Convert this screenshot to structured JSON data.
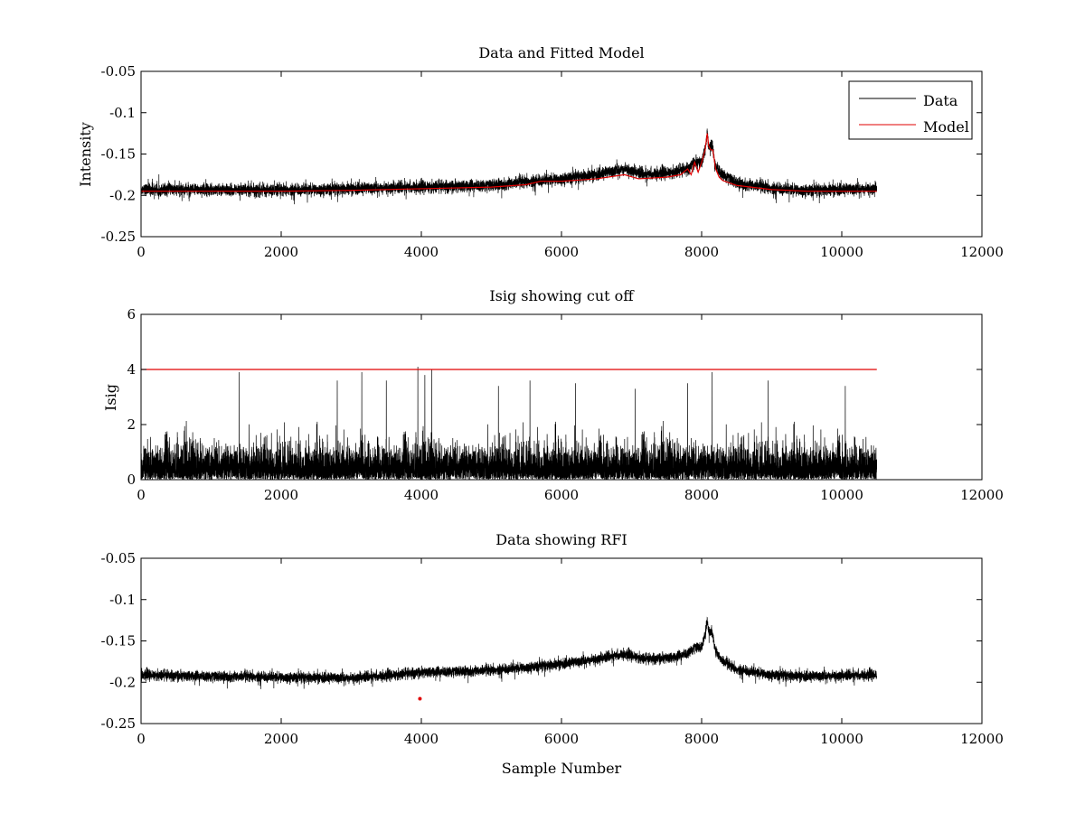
{
  "chart_data": [
    {
      "id": "p1",
      "type": "line",
      "title": "Data and Fitted Model",
      "xlabel": "",
      "ylabel": "Intensity",
      "xlim": [
        0,
        12000
      ],
      "ylim": [
        -0.25,
        -0.05
      ],
      "xticks": [
        0,
        2000,
        4000,
        6000,
        8000,
        10000,
        12000
      ],
      "yticks": [
        -0.25,
        -0.2,
        -0.15,
        -0.1,
        -0.05
      ],
      "xtick_labels": [
        "0",
        "2000",
        "4000",
        "6000",
        "8000",
        "10000",
        "12000"
      ],
      "ytick_labels": [
        "-0.25",
        "-0.2",
        "-0.15",
        "-0.1",
        "-0.05"
      ],
      "legend": {
        "position": "top-right",
        "entries": [
          {
            "label": "Data",
            "color": "#000000"
          },
          {
            "label": "Model",
            "color": "#e00000"
          }
        ]
      },
      "series": [
        {
          "name": "Data",
          "color": "#000000",
          "kind": "noisy",
          "n_points": 10500,
          "baseline_x": [
            0,
            1000,
            2000,
            3000,
            4000,
            5000,
            6000,
            6500,
            6900,
            7200,
            7600,
            7800,
            7900,
            8000,
            8050,
            8080,
            8100,
            8150,
            8200,
            8300,
            8500,
            9000,
            9500,
            10000,
            10500
          ],
          "baseline_y": [
            -0.193,
            -0.193,
            -0.194,
            -0.192,
            -0.19,
            -0.188,
            -0.18,
            -0.175,
            -0.168,
            -0.175,
            -0.172,
            -0.168,
            -0.16,
            -0.16,
            -0.145,
            -0.125,
            -0.14,
            -0.14,
            -0.165,
            -0.175,
            -0.185,
            -0.192,
            -0.194,
            -0.193,
            -0.192
          ],
          "noise_amplitude": 0.007
        },
        {
          "name": "Model",
          "color": "#e00000",
          "kind": "smooth",
          "x": [
            0,
            1000,
            2000,
            3000,
            4000,
            5000,
            5500,
            5700,
            6000,
            6500,
            6900,
            7100,
            7500,
            7700,
            7800,
            7850,
            7900,
            7950,
            8000,
            8050,
            8080,
            8100,
            8130,
            8160,
            8200,
            8250,
            8300,
            8500,
            9000,
            9500,
            10000,
            10500
          ],
          "y": [
            -0.195,
            -0.195,
            -0.195,
            -0.194,
            -0.192,
            -0.19,
            -0.187,
            -0.183,
            -0.183,
            -0.18,
            -0.175,
            -0.18,
            -0.178,
            -0.175,
            -0.168,
            -0.175,
            -0.16,
            -0.172,
            -0.16,
            -0.145,
            -0.125,
            -0.14,
            -0.145,
            -0.145,
            -0.168,
            -0.178,
            -0.182,
            -0.188,
            -0.193,
            -0.195,
            -0.195,
            -0.195
          ]
        }
      ]
    },
    {
      "id": "p2",
      "type": "line",
      "title": "Isig showing cut off",
      "xlabel": "",
      "ylabel": "Isig",
      "xlim": [
        0,
        12000
      ],
      "ylim": [
        0,
        6
      ],
      "xticks": [
        0,
        2000,
        4000,
        6000,
        8000,
        10000,
        12000
      ],
      "yticks": [
        0,
        2,
        4,
        6
      ],
      "xtick_labels": [
        "0",
        "2000",
        "4000",
        "6000",
        "8000",
        "10000",
        "12000"
      ],
      "ytick_labels": [
        "0",
        "2",
        "4",
        "6"
      ],
      "series": [
        {
          "name": "Isig",
          "color": "#000000",
          "kind": "abs-noise",
          "n_points": 10500,
          "typical_max": 2.2,
          "spike_x": [
            1400,
            2800,
            3150,
            3500,
            3950,
            4050,
            4150,
            5100,
            5550,
            6200,
            7050,
            7800,
            8150,
            8950,
            10050
          ],
          "spike_y": [
            3.9,
            3.6,
            3.9,
            3.6,
            4.1,
            3.8,
            4.0,
            3.4,
            3.6,
            3.5,
            3.3,
            3.5,
            3.9,
            3.6,
            3.4
          ]
        },
        {
          "name": "Cut off",
          "color": "#e00000",
          "kind": "line",
          "x": [
            0,
            10500
          ],
          "y": [
            4,
            4
          ]
        }
      ]
    },
    {
      "id": "p3",
      "type": "line",
      "title": "Data showing RFI",
      "xlabel": "Sample Number",
      "ylabel": "",
      "xlim": [
        0,
        12000
      ],
      "ylim": [
        -0.25,
        -0.05
      ],
      "xticks": [
        0,
        2000,
        4000,
        6000,
        8000,
        10000,
        12000
      ],
      "yticks": [
        -0.25,
        -0.2,
        -0.15,
        -0.1,
        -0.05
      ],
      "xtick_labels": [
        "0",
        "2000",
        "4000",
        "6000",
        "8000",
        "10000",
        "12000"
      ],
      "ytick_labels": [
        "-0.25",
        "-0.2",
        "-0.15",
        "-0.1",
        "-0.05"
      ],
      "series": [
        {
          "name": "Data",
          "color": "#000000",
          "kind": "noisy",
          "n_points": 10500,
          "baseline_x": [
            0,
            1000,
            2000,
            3000,
            3500,
            4000,
            5000,
            6000,
            6500,
            6900,
            7200,
            7600,
            7800,
            7900,
            8000,
            8050,
            8080,
            8100,
            8150,
            8200,
            8300,
            8500,
            9000,
            9500,
            10000,
            10500
          ],
          "baseline_y": [
            -0.191,
            -0.193,
            -0.194,
            -0.195,
            -0.192,
            -0.188,
            -0.186,
            -0.178,
            -0.172,
            -0.166,
            -0.172,
            -0.17,
            -0.165,
            -0.158,
            -0.158,
            -0.142,
            -0.125,
            -0.138,
            -0.138,
            -0.163,
            -0.175,
            -0.185,
            -0.191,
            -0.193,
            -0.192,
            -0.191
          ],
          "noise_amplitude": 0.006
        },
        {
          "name": "RFI",
          "color": "#e00000",
          "kind": "markers",
          "x": [
            3980
          ],
          "y": [
            -0.22
          ]
        }
      ]
    }
  ]
}
